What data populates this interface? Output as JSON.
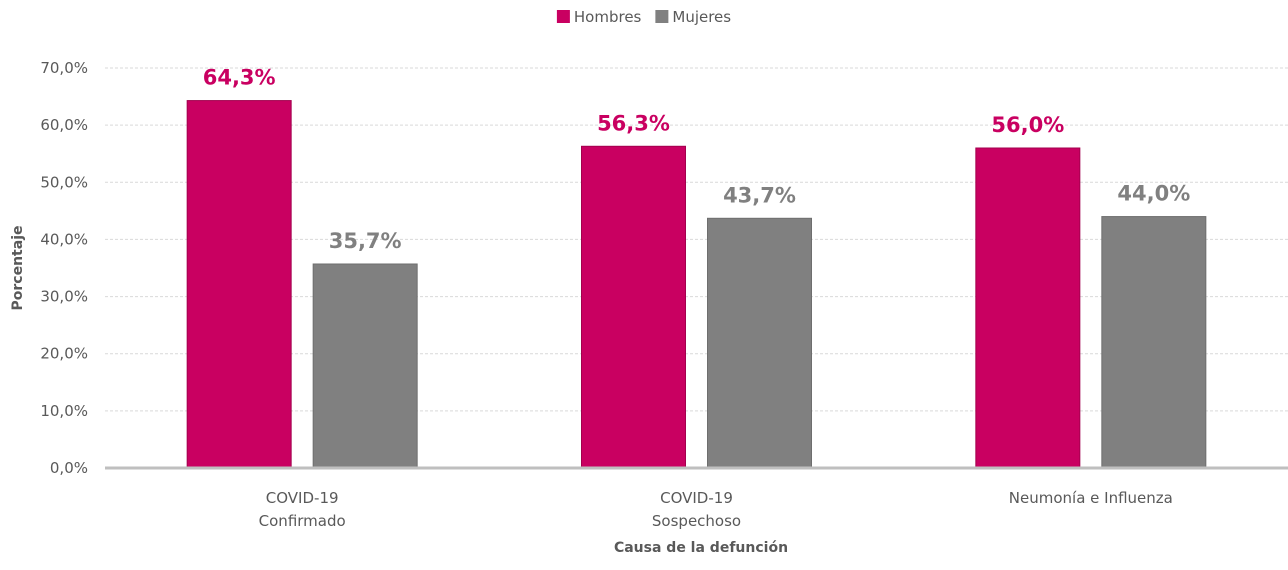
{
  "chart_data": {
    "type": "bar",
    "title": "",
    "categories": [
      [
        "COVID-19",
        "Confirmado"
      ],
      [
        "COVID-19",
        "Sospechoso"
      ],
      [
        "Neumonía e Influenza"
      ]
    ],
    "series": [
      {
        "name": "Hombres",
        "values": [
          64.3,
          56.3,
          56.0
        ],
        "labels": [
          "64,3%",
          "56,3%",
          "56,0%"
        ],
        "color": "#C90061"
      },
      {
        "name": "Mujeres",
        "values": [
          35.7,
          43.7,
          44.0
        ],
        "labels": [
          "35,7%",
          "43,7%",
          "44,0%"
        ],
        "color": "#808080"
      }
    ],
    "xlabel": "Causa de la defunción",
    "ylabel": "Porcentaje",
    "ylim": [
      0,
      70
    ],
    "yticks": [
      0,
      10,
      20,
      30,
      40,
      50,
      60,
      70
    ],
    "ytick_labels": [
      "0,0%",
      "10,0%",
      "20,0%",
      "30,0%",
      "40,0%",
      "50,0%",
      "60,0%",
      "70,0%"
    ],
    "grid": true,
    "legend_position": "top-center"
  }
}
